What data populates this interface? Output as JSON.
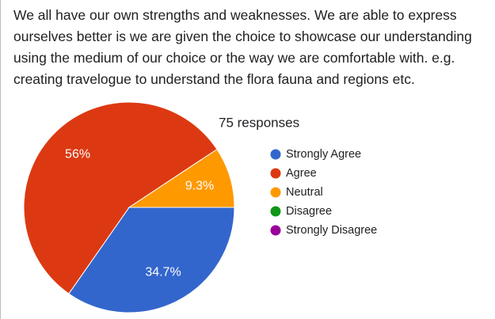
{
  "question": "We all have our own strengths and weaknesses. We are able to express ourselves better is  we are given the choice to showcase our understanding using the medium of our choice or  the way we are comfortable with. e.g. creating travelogue to understand the flora fauna and  regions etc.",
  "chart_data": {
    "type": "pie",
    "subtitle": "75 responses",
    "categories": [
      "Strongly Agree",
      "Agree",
      "Neutral",
      "Disagree",
      "Strongly Disagree"
    ],
    "values": [
      34.7,
      56,
      9.3,
      0,
      0
    ],
    "value_labels": [
      "34.7%",
      "56%",
      "9.3%",
      null,
      null
    ],
    "colors": [
      "#3366cc",
      "#dc3912",
      "#ff9900",
      "#109618",
      "#990099"
    ],
    "legend": "right"
  }
}
